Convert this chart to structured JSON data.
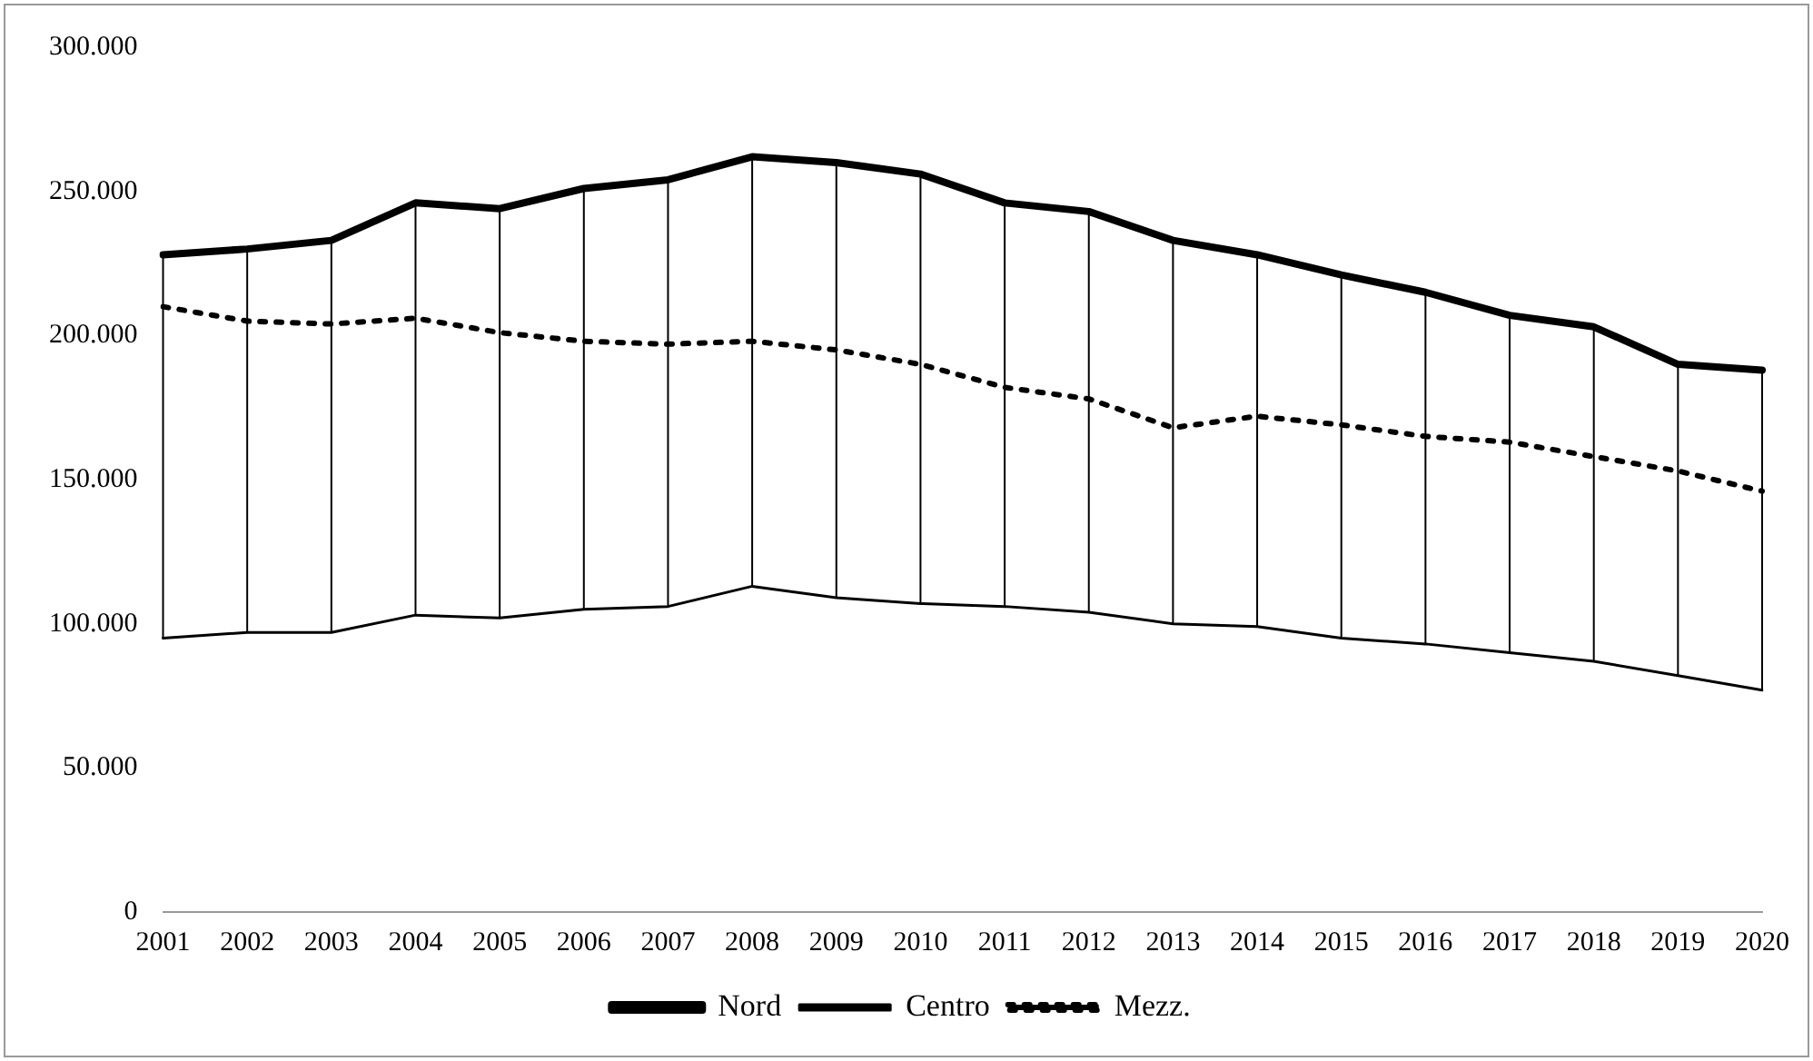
{
  "chart_data": {
    "type": "line",
    "categories": [
      "2001",
      "2002",
      "2003",
      "2004",
      "2005",
      "2006",
      "2007",
      "2008",
      "2009",
      "2010",
      "2011",
      "2012",
      "2013",
      "2014",
      "2015",
      "2016",
      "2017",
      "2018",
      "2019",
      "2020"
    ],
    "series": [
      {
        "name": "Nord",
        "color": "#000000",
        "line_style": "solid",
        "values": [
          228000,
          230000,
          233000,
          246000,
          244000,
          251000,
          254000,
          262000,
          260000,
          256000,
          246000,
          243000,
          233000,
          228000,
          221000,
          215000,
          207000,
          203000,
          190000,
          188000
        ],
        "errors": [
          [
            95000,
            228000
          ],
          [
            97000,
            230000
          ],
          [
            97000,
            233000
          ],
          [
            103000,
            246000
          ],
          [
            102000,
            244000
          ],
          [
            105000,
            251000
          ],
          [
            106000,
            254000
          ],
          [
            113000,
            262000
          ],
          [
            109000,
            260000
          ],
          [
            107000,
            256000
          ],
          [
            106000,
            246000
          ],
          [
            104000,
            243000
          ],
          [
            100000,
            233000
          ],
          [
            99000,
            228000
          ],
          [
            95000,
            221000
          ],
          [
            93000,
            215000
          ],
          [
            90000,
            207000
          ],
          [
            87000,
            203000
          ],
          [
            82000,
            190000
          ],
          [
            77000,
            188000
          ]
        ]
      },
      {
        "name": "Centro",
        "color": "#000000",
        "line_style": "solid",
        "values": [
          95000,
          97000,
          97000,
          103000,
          102000,
          105000,
          106000,
          113000,
          109000,
          107000,
          106000,
          104000,
          100000,
          99000,
          95000,
          93000,
          90000,
          87000,
          82000,
          77000
        ]
      },
      {
        "name": "Mezz.",
        "color": "#000000",
        "line_style": "dotted",
        "values": [
          210000,
          205000,
          204000,
          206000,
          201000,
          198000,
          197000,
          198000,
          195000,
          190000,
          182000,
          178000,
          168000,
          172000,
          169000,
          165000,
          163000,
          158000,
          153000,
          146000
        ]
      }
    ],
    "ylim": [
      0,
      300000
    ],
    "yticks": [
      0,
      {
        "value": 50000,
        "label": "50.000"
      },
      {
        "value": 100000,
        "label": "100.000"
      },
      {
        "value": 150000,
        "label": "150.000"
      },
      {
        "value": 200000,
        "label": "200.000"
      },
      {
        "value": 250000,
        "label": "250.000"
      },
      {
        "value": 300000,
        "label": "300.000"
      }
    ],
    "grid": false,
    "legend": "bottom",
    "marker": "none"
  }
}
